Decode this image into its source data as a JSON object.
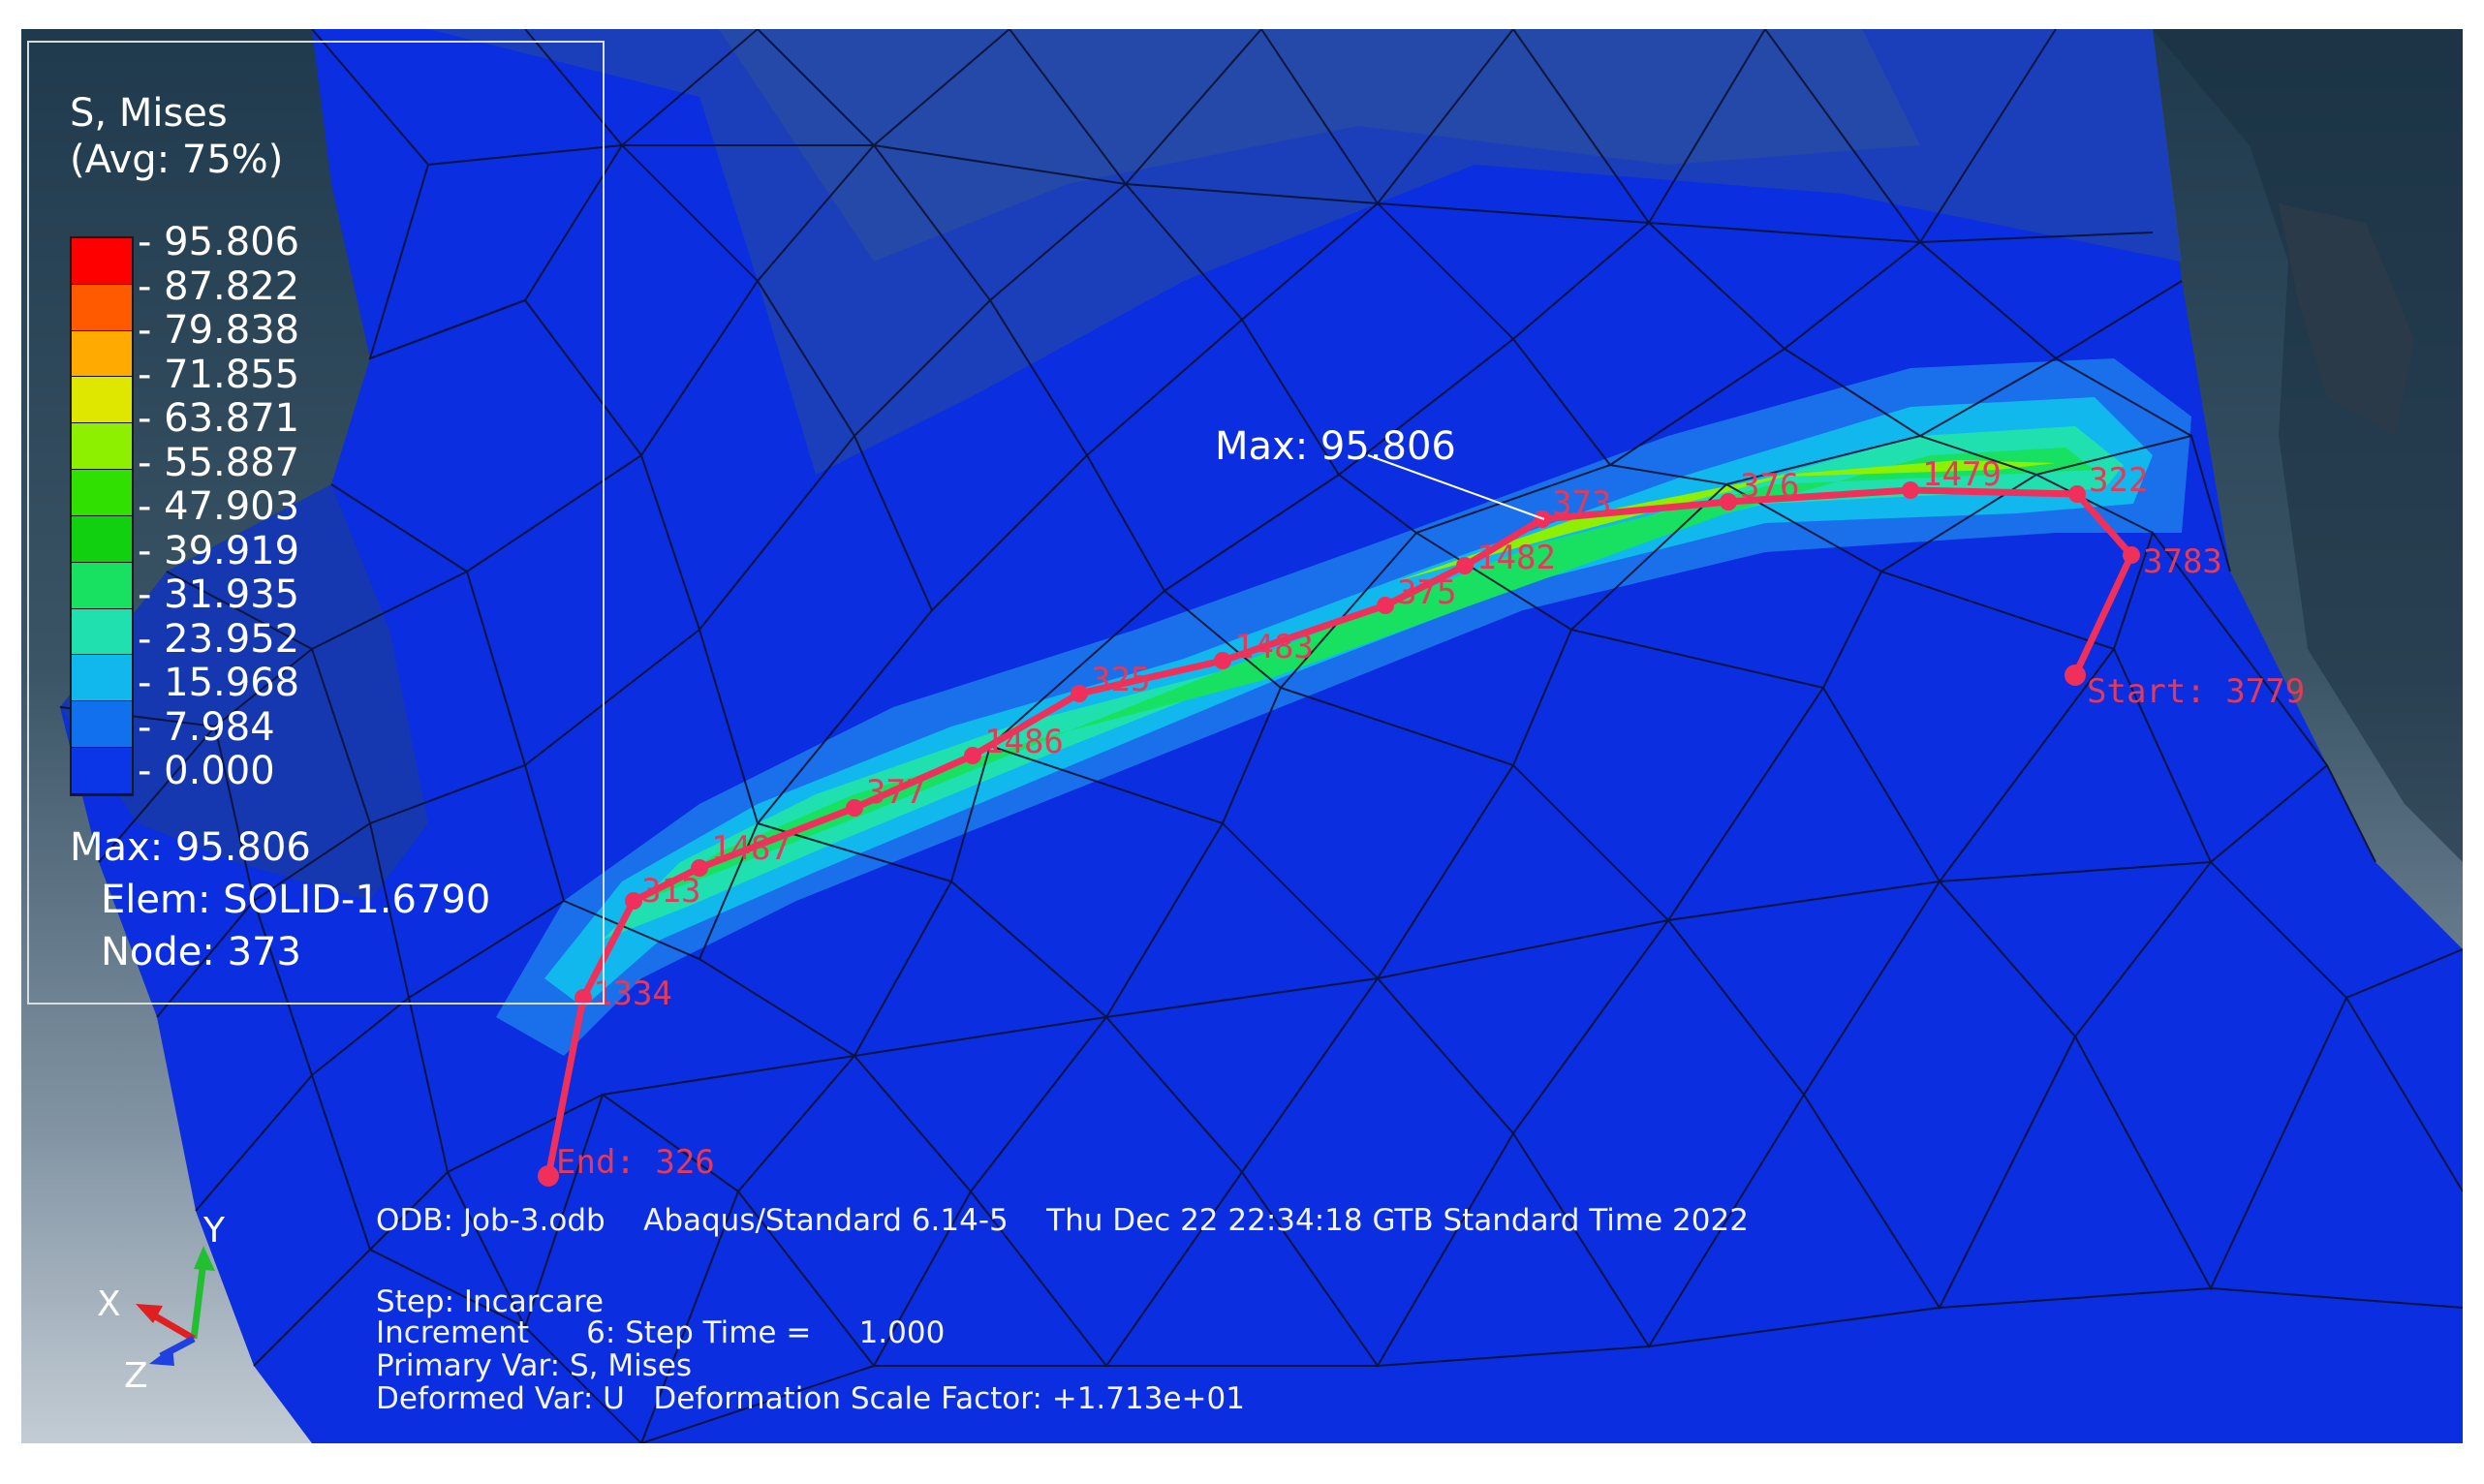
{
  "legend": {
    "title": "S, Mises",
    "subtitle": "(Avg: 75%)",
    "values": [
      "95.806",
      "87.822",
      "79.838",
      "71.855",
      "63.871",
      "55.887",
      "47.903",
      "39.919",
      "31.935",
      "23.952",
      "15.968",
      "7.984",
      "0.000"
    ],
    "band_colors": [
      "#ff0000",
      "#ff5a00",
      "#ffaa00",
      "#dfe600",
      "#8cf000",
      "#30e000",
      "#10d010",
      "#18e060",
      "#20e0b0",
      "#10b8ee",
      "#1070ee",
      "#0a36e8"
    ],
    "max": "Max: 95.806",
    "elem": "Elem: SOLID-1.6790",
    "node": "Node: 373"
  },
  "max_callout": "Max: 95.806",
  "path_nodes": [
    {
      "label": "End: 326"
    },
    {
      "label": "1334"
    },
    {
      "label": "313"
    },
    {
      "label": "1487"
    },
    {
      "label": "377"
    },
    {
      "label": "1486"
    },
    {
      "label": "325"
    },
    {
      "label": "1483"
    },
    {
      "label": "375"
    },
    {
      "label": "1482"
    },
    {
      "label": "373"
    },
    {
      "label": "376"
    },
    {
      "label": "1479"
    },
    {
      "label": "322"
    },
    {
      "label": "3783"
    },
    {
      "label": "Start: 3779"
    }
  ],
  "info": {
    "odb_line": "ODB: Job-3.odb    Abaqus/Standard 6.14-5    Thu Dec 22 22:34:18 GTB Standard Time 2022",
    "step_line": "Step: Incarcare",
    "increment_line": "Increment      6: Step Time =     1.000",
    "primary_line": "Primary Var: S, Mises",
    "deformed_line": "Deformed Var: U   Deformation Scale Factor: +1.713e+01"
  },
  "triad": {
    "x": "X",
    "y": "Y",
    "z": "Z"
  },
  "colors": {
    "path": "#f0305a",
    "mesh_base": "#0a2ee0",
    "mesh_line": "#0a1230"
  }
}
